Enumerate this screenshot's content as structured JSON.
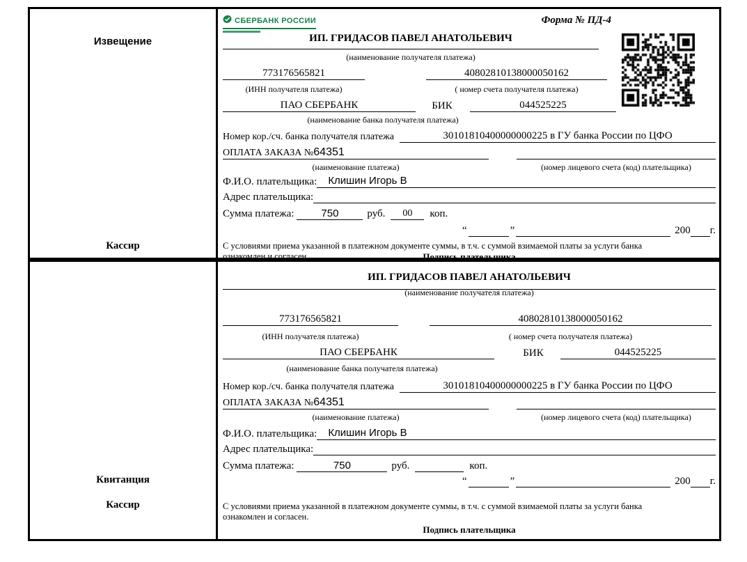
{
  "form": {
    "colors": {
      "ink": "#000000",
      "sberbank_green": "#17804a"
    },
    "icons": {
      "qr": "qr-code",
      "logo": "sberbank-logo-icon"
    },
    "notice": {
      "side_top": "Извещение",
      "cashier": "Кассир",
      "logo_text": "СБЕРБАНК РОССИИ",
      "form_number": "Форма № ПД-4",
      "kop_value": "00"
    },
    "receipt": {
      "side_top": "Квитанция",
      "cashier": "Кассир",
      "kop_value": ""
    },
    "common": {
      "payee_name": "ИП. ГРИДАСОВ ПАВЕЛ АНАТОЛЬЕВИЧ",
      "payee_caption": "(наименование получателя платежа)",
      "inn_value": "773176565821",
      "inn_caption": "(ИНН получателя платежа)",
      "account_value": "40802810138000050162",
      "account_caption": "( номер счета получателя платежа)",
      "bank_name": "ПАО СБЕРБАНК",
      "bik_label": "БИК",
      "bik_value": "044525225",
      "bank_caption": "(наименование банка получателя платежа)",
      "corr_label": "Номер кор./сч. банка получателя платежа",
      "corr_value": "30101810400000000225 в ГУ банка России по ЦФО",
      "payment_label": "ОПЛАТА ЗАКАЗА №",
      "payment_order": "64351",
      "payment_caption": "(наименование платежа)",
      "personal_caption": "(номер лицевого счета (код) плательщика)",
      "fio_label": "Ф.И.О. плательщика:",
      "fio_value": "Клишин Игорь В",
      "address_label": "Адрес плательщика:",
      "amount_label": "Сумма платежа:",
      "amount_value": "750",
      "rub_label": "руб.",
      "kop_label": "коп.",
      "quote_open": "“",
      "quote_close": "”",
      "year_prefix": "200",
      "year_suffix": "г.",
      "agreement_line1": "С условиями приема указанной в платежном документе суммы, в т.ч. с суммой взимаемой платы за услуги банка",
      "agreement_line2": "ознакомлен и согласен.",
      "signature_label": "Подпись плательщика"
    }
  }
}
